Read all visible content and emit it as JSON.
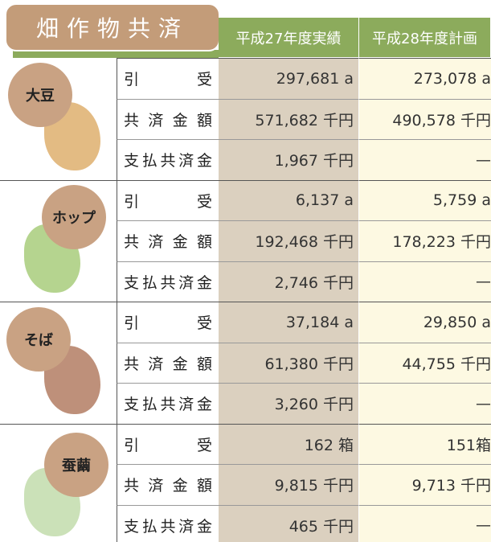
{
  "header": {
    "title": "畑作物共済",
    "columns": [
      "平成27年度実績",
      "平成28年度計画"
    ]
  },
  "groups": [
    {
      "name": "大豆",
      "rows": [
        [
          "引受",
          "297,681 a",
          "273,078 a"
        ],
        [
          "共済金額",
          "571,682 千円",
          "490,578 千円"
        ],
        [
          "支払共済金",
          "1,967 千円",
          "—"
        ]
      ]
    },
    {
      "name": "ホップ",
      "rows": [
        [
          "引受",
          "6,137 a",
          "5,759 a"
        ],
        [
          "共済金額",
          "192,468 千円",
          "178,223 千円"
        ],
        [
          "支払共済金",
          "2,746 千円",
          "—"
        ]
      ]
    },
    {
      "name": "そば",
      "rows": [
        [
          "引受",
          "37,184 a",
          "29,850 a"
        ],
        [
          "共済金額",
          "61,380 千円",
          "44,755 千円"
        ],
        [
          "支払共済金",
          "3,260 千円",
          "—"
        ]
      ]
    },
    {
      "name": "蚕繭",
      "rows": [
        [
          "引受",
          "162 箱",
          "151箱"
        ],
        [
          "共済金額",
          "9,815 千円",
          "9,713 千円"
        ],
        [
          "支払共済金",
          "465 千円",
          "—"
        ]
      ]
    }
  ]
}
